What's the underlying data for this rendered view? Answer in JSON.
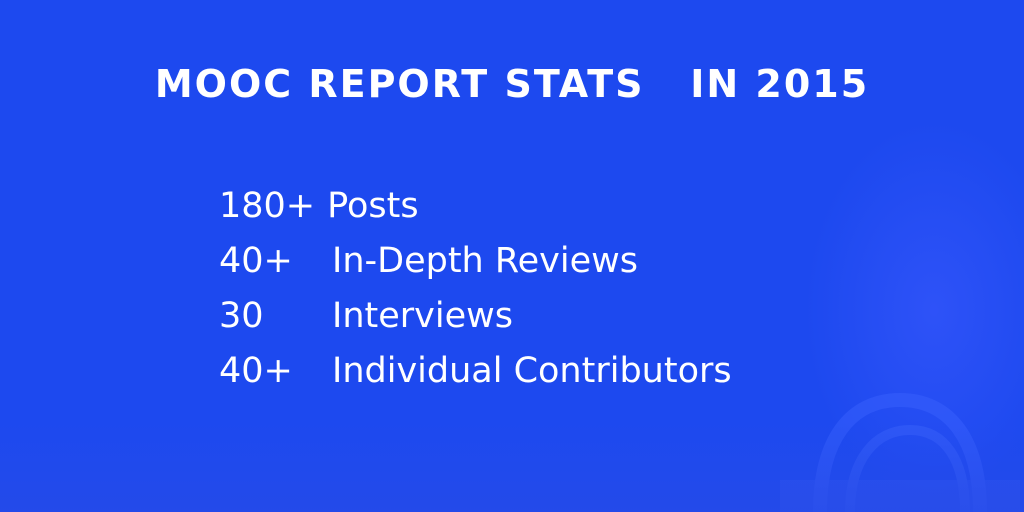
{
  "banner": {
    "background_color": "#1d49ef",
    "text_color": "#ffffff",
    "title": "MOOC REPORT STATS   IN 2015",
    "stats": [
      {
        "number": "180+",
        "label": "Posts"
      },
      {
        "number": "40+",
        "label": "In-Depth Reviews"
      },
      {
        "number": "30",
        "label": "Interviews"
      },
      {
        "number": "40+",
        "label": "Individual Contributors"
      }
    ]
  }
}
